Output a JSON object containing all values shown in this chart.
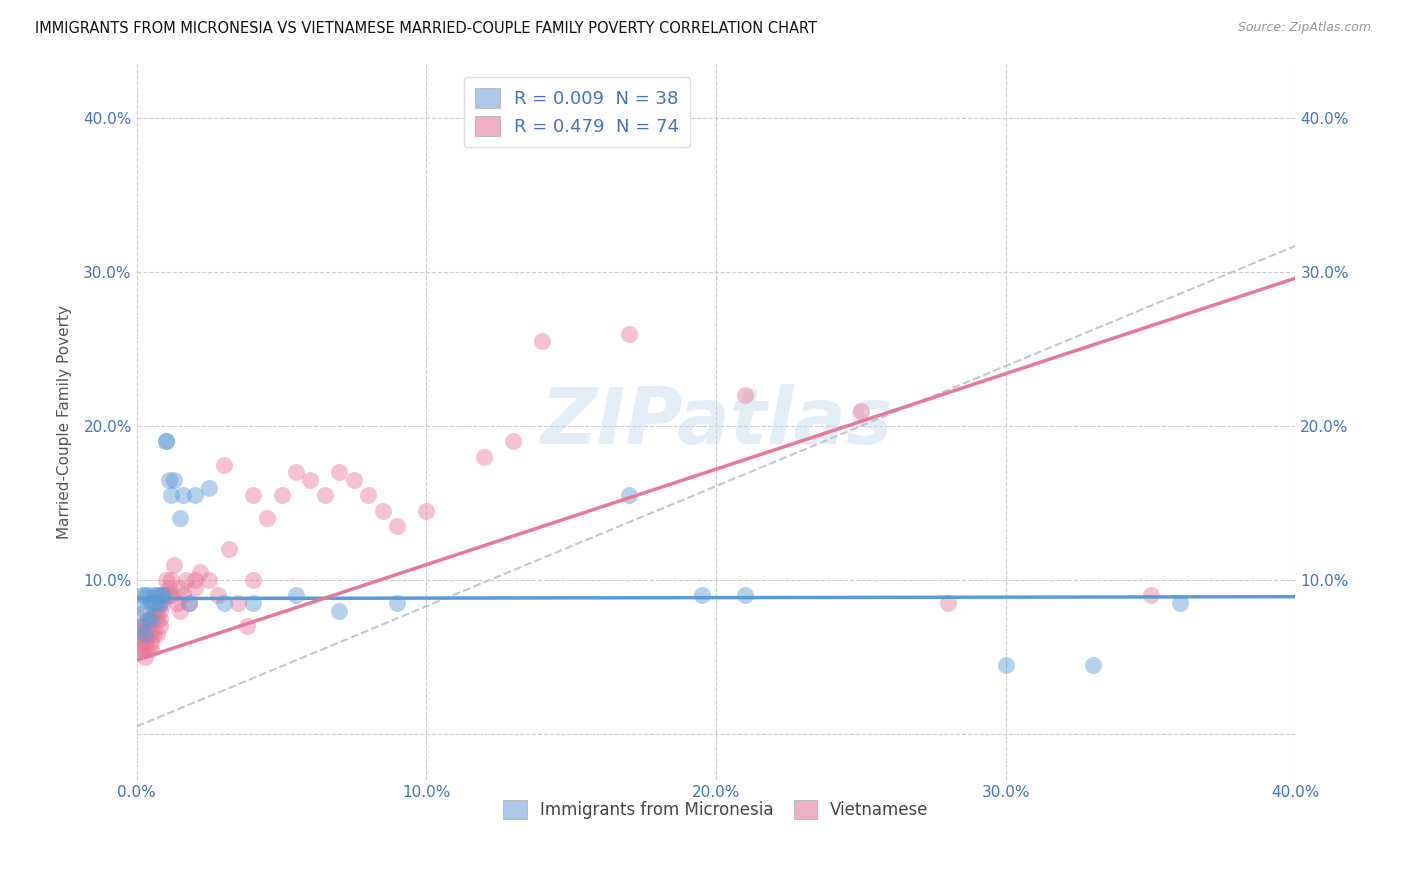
{
  "title": "IMMIGRANTS FROM MICRONESIA VS VIETNAMESE MARRIED-COUPLE FAMILY POVERTY CORRELATION CHART",
  "source": "Source: ZipAtlas.com",
  "ylabel": "Married-Couple Family Poverty",
  "xlim": [
    0.0,
    0.4
  ],
  "ylim": [
    -0.03,
    0.435
  ],
  "xticks": [
    0.0,
    0.1,
    0.2,
    0.3,
    0.4
  ],
  "yticks": [
    0.0,
    0.1,
    0.2,
    0.3,
    0.4
  ],
  "xticklabels": [
    "0.0%",
    "10.0%",
    "20.0%",
    "30.0%",
    "40.0%"
  ],
  "yticklabels": [
    "",
    "10.0%",
    "20.0%",
    "30.0%",
    "40.0%"
  ],
  "watermark": "ZIPatlas",
  "blue_label": "Immigrants from Micronesia",
  "pink_label": "Vietnamese",
  "blue_R": "0.009",
  "blue_N": "38",
  "pink_R": "0.479",
  "pink_N": "74",
  "blue_color": "#5b9bd5",
  "pink_color": "#e8789a",
  "blue_legend_color": "#aec6e8",
  "pink_legend_color": "#f0b0c4",
  "background_color": "#ffffff",
  "grid_color": "#cccccc",
  "tick_color": "#4472c4",
  "ylabel_color": "#555555",
  "title_color": "#111111",
  "source_color": "#999999",
  "watermark_color": "#c5d8ec",
  "watermark_alpha": 0.45,
  "blue_scatter_x": [
    0.001,
    0.002,
    0.002,
    0.003,
    0.003,
    0.003,
    0.004,
    0.004,
    0.005,
    0.005,
    0.006,
    0.006,
    0.007,
    0.007,
    0.008,
    0.008,
    0.009,
    0.01,
    0.01,
    0.011,
    0.012,
    0.013,
    0.015,
    0.016,
    0.018,
    0.02,
    0.025,
    0.03,
    0.04,
    0.055,
    0.07,
    0.09,
    0.17,
    0.195,
    0.21,
    0.3,
    0.33,
    0.36
  ],
  "blue_scatter_y": [
    0.085,
    0.09,
    0.07,
    0.08,
    0.09,
    0.065,
    0.075,
    0.09,
    0.085,
    0.075,
    0.09,
    0.085,
    0.09,
    0.085,
    0.09,
    0.085,
    0.09,
    0.19,
    0.19,
    0.165,
    0.155,
    0.165,
    0.14,
    0.155,
    0.085,
    0.155,
    0.16,
    0.085,
    0.085,
    0.09,
    0.08,
    0.085,
    0.155,
    0.09,
    0.09,
    0.045,
    0.045,
    0.085
  ],
  "pink_scatter_x": [
    0.001,
    0.001,
    0.001,
    0.002,
    0.002,
    0.002,
    0.002,
    0.003,
    0.003,
    0.003,
    0.003,
    0.003,
    0.004,
    0.004,
    0.004,
    0.005,
    0.005,
    0.005,
    0.005,
    0.006,
    0.006,
    0.006,
    0.007,
    0.007,
    0.007,
    0.008,
    0.008,
    0.008,
    0.008,
    0.009,
    0.009,
    0.01,
    0.01,
    0.011,
    0.011,
    0.012,
    0.012,
    0.013,
    0.014,
    0.015,
    0.015,
    0.016,
    0.017,
    0.018,
    0.02,
    0.02,
    0.022,
    0.025,
    0.028,
    0.03,
    0.032,
    0.035,
    0.038,
    0.04,
    0.04,
    0.045,
    0.05,
    0.055,
    0.06,
    0.065,
    0.07,
    0.075,
    0.08,
    0.085,
    0.09,
    0.1,
    0.12,
    0.13,
    0.14,
    0.17,
    0.21,
    0.25,
    0.28,
    0.35
  ],
  "pink_scatter_y": [
    0.055,
    0.065,
    0.075,
    0.06,
    0.07,
    0.055,
    0.065,
    0.07,
    0.065,
    0.055,
    0.06,
    0.05,
    0.07,
    0.065,
    0.055,
    0.075,
    0.065,
    0.06,
    0.055,
    0.08,
    0.075,
    0.065,
    0.08,
    0.075,
    0.065,
    0.085,
    0.08,
    0.07,
    0.075,
    0.09,
    0.085,
    0.09,
    0.1,
    0.095,
    0.09,
    0.1,
    0.09,
    0.11,
    0.085,
    0.095,
    0.08,
    0.09,
    0.1,
    0.085,
    0.095,
    0.1,
    0.105,
    0.1,
    0.09,
    0.175,
    0.12,
    0.085,
    0.07,
    0.1,
    0.155,
    0.14,
    0.155,
    0.17,
    0.165,
    0.155,
    0.17,
    0.165,
    0.155,
    0.145,
    0.135,
    0.145,
    0.18,
    0.19,
    0.255,
    0.26,
    0.22,
    0.21,
    0.085,
    0.09
  ],
  "blue_trend_slope": 0.003,
  "blue_trend_intercept": 0.088,
  "pink_trend_slope": 0.62,
  "pink_trend_intercept": 0.048,
  "dashed_slope": 0.78,
  "dashed_intercept": 0.005
}
